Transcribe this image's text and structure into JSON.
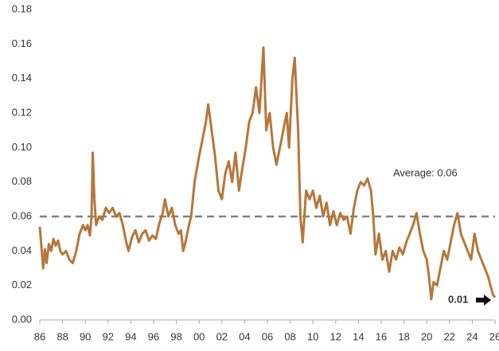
{
  "chart_data": {
    "type": "line",
    "x": [
      1986.0,
      1986.15,
      1986.3,
      1986.45,
      1986.6,
      1986.8,
      1987.0,
      1987.2,
      1987.4,
      1987.6,
      1987.8,
      1988.0,
      1988.3,
      1988.6,
      1988.9,
      1989.2,
      1989.5,
      1989.8,
      1990.0,
      1990.2,
      1990.4,
      1990.55,
      1990.65,
      1990.8,
      1990.95,
      1991.2,
      1991.5,
      1991.8,
      1992.1,
      1992.4,
      1992.7,
      1993.0,
      1993.3,
      1993.6,
      1993.8,
      1994.1,
      1994.4,
      1994.7,
      1995.0,
      1995.3,
      1995.6,
      1995.9,
      1996.2,
      1996.5,
      1996.8,
      1997.0,
      1997.3,
      1997.6,
      1997.9,
      1998.2,
      1998.4,
      1998.6,
      1998.8,
      1999.1,
      1999.3,
      1999.6,
      2000.0,
      2000.3,
      2000.6,
      2000.8,
      2001.1,
      2001.4,
      2001.7,
      2002.0,
      2002.3,
      2002.6,
      2002.9,
      2003.2,
      2003.5,
      2003.8,
      2004.1,
      2004.4,
      2004.7,
      2005.0,
      2005.3,
      2005.65,
      2005.9,
      2006.2,
      2006.5,
      2006.8,
      2007.1,
      2007.4,
      2007.7,
      2007.9,
      2008.2,
      2008.4,
      2008.7,
      2008.9,
      2009.1,
      2009.4,
      2009.7,
      2010.0,
      2010.3,
      2010.6,
      2010.9,
      2011.2,
      2011.5,
      2011.8,
      2012.1,
      2012.4,
      2012.7,
      2013.0,
      2013.3,
      2013.6,
      2013.9,
      2014.2,
      2014.5,
      2014.8,
      2015.1,
      2015.3,
      2015.5,
      2015.8,
      2016.1,
      2016.4,
      2016.7,
      2017.0,
      2017.3,
      2017.6,
      2017.9,
      2018.2,
      2018.5,
      2018.8,
      2019.1,
      2019.4,
      2019.7,
      2020.0,
      2020.2,
      2020.4,
      2020.6,
      2020.9,
      2021.2,
      2021.5,
      2021.8,
      2022.1,
      2022.4,
      2022.7,
      2023.0,
      2023.3,
      2023.6,
      2023.9,
      2024.2,
      2024.5,
      2024.8,
      2025.1,
      2025.4,
      2025.6,
      2025.8,
      2026.0
    ],
    "series": [
      {
        "color": "#b5773a",
        "values": [
          0.054,
          0.042,
          0.03,
          0.041,
          0.033,
          0.044,
          0.04,
          0.047,
          0.043,
          0.046,
          0.04,
          0.038,
          0.04,
          0.035,
          0.033,
          0.04,
          0.05,
          0.055,
          0.052,
          0.055,
          0.049,
          0.06,
          0.097,
          0.07,
          0.055,
          0.06,
          0.058,
          0.065,
          0.062,
          0.065,
          0.06,
          0.062,
          0.055,
          0.045,
          0.04,
          0.048,
          0.052,
          0.045,
          0.05,
          0.052,
          0.046,
          0.049,
          0.047,
          0.056,
          0.062,
          0.07,
          0.06,
          0.065,
          0.055,
          0.05,
          0.052,
          0.04,
          0.045,
          0.055,
          0.06,
          0.08,
          0.095,
          0.105,
          0.115,
          0.125,
          0.11,
          0.095,
          0.075,
          0.07,
          0.085,
          0.092,
          0.08,
          0.097,
          0.075,
          0.088,
          0.1,
          0.115,
          0.12,
          0.135,
          0.12,
          0.158,
          0.11,
          0.12,
          0.1,
          0.09,
          0.1,
          0.11,
          0.12,
          0.1,
          0.14,
          0.152,
          0.11,
          0.06,
          0.045,
          0.075,
          0.07,
          0.075,
          0.065,
          0.072,
          0.06,
          0.068,
          0.055,
          0.063,
          0.055,
          0.062,
          0.058,
          0.06,
          0.05,
          0.065,
          0.075,
          0.08,
          0.078,
          0.082,
          0.075,
          0.06,
          0.038,
          0.05,
          0.035,
          0.04,
          0.028,
          0.04,
          0.035,
          0.042,
          0.038,
          0.045,
          0.05,
          0.055,
          0.062,
          0.05,
          0.04,
          0.035,
          0.025,
          0.012,
          0.022,
          0.02,
          0.03,
          0.04,
          0.035,
          0.045,
          0.055,
          0.062,
          0.05,
          0.045,
          0.04,
          0.035,
          0.05,
          0.04,
          0.035,
          0.03,
          0.025,
          0.02,
          0.015,
          0.013
        ]
      }
    ],
    "xlim": [
      1986,
      2026
    ],
    "xticks": [
      {
        "value": 1986,
        "label": "86"
      },
      {
        "value": 1988,
        "label": "88"
      },
      {
        "value": 1990,
        "label": "90"
      },
      {
        "value": 1992,
        "label": "92"
      },
      {
        "value": 1994,
        "label": "94"
      },
      {
        "value": 1996,
        "label": "96"
      },
      {
        "value": 1998,
        "label": "98"
      },
      {
        "value": 2000,
        "label": "00"
      },
      {
        "value": 2002,
        "label": "02"
      },
      {
        "value": 2004,
        "label": "04"
      },
      {
        "value": 2006,
        "label": "06"
      },
      {
        "value": 2008,
        "label": "08"
      },
      {
        "value": 2010,
        "label": "10"
      },
      {
        "value": 2012,
        "label": "12"
      },
      {
        "value": 2014,
        "label": "14"
      },
      {
        "value": 2016,
        "label": "16"
      },
      {
        "value": 2018,
        "label": "18"
      },
      {
        "value": 2020,
        "label": "20"
      },
      {
        "value": 2022,
        "label": "22"
      },
      {
        "value": 2024,
        "label": "24"
      },
      {
        "value": 2026,
        "label": "26"
      }
    ],
    "ylim": [
      0,
      0.18
    ],
    "yticks": [
      {
        "value": 0,
        "label": "0.00"
      },
      0.02,
      0.04,
      0.06,
      0.08,
      {
        "value": 0.1,
        "label": "0.10"
      },
      0.12,
      0.14,
      0.16,
      0.18
    ],
    "grid": false,
    "reference_line": {
      "value": 0.06,
      "label": "Average: 0.06",
      "color": "#808080"
    },
    "end_label": "0.01"
  }
}
